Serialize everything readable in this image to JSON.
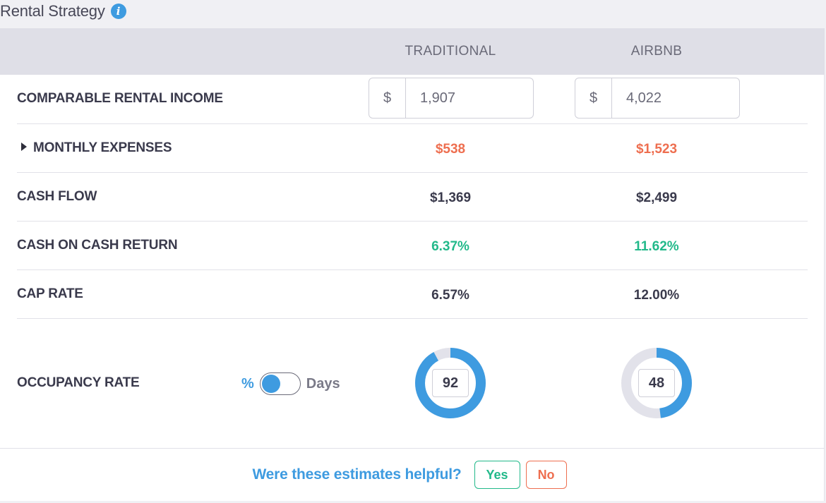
{
  "header": {
    "title": "Rental Strategy",
    "info_icon": "info-icon"
  },
  "columns": {
    "traditional": "TRADITIONAL",
    "airbnb": "AIRBNB"
  },
  "rows": {
    "income": {
      "label": "COMPARABLE RENTAL INCOME",
      "currency": "$",
      "traditional": "1,907",
      "airbnb": "4,022"
    },
    "expenses": {
      "label": "MONTHLY EXPENSES",
      "traditional": "$538",
      "airbnb": "$1,523"
    },
    "cash_flow": {
      "label": "CASH FLOW",
      "traditional": "$1,369",
      "airbnb": "$2,499"
    },
    "coc_return": {
      "label": "CASH ON CASH RETURN",
      "traditional": "6.37%",
      "airbnb": "11.62%"
    },
    "cap_rate": {
      "label": "CAP RATE",
      "traditional": "6.57%",
      "airbnb": "12.00%"
    },
    "occupancy": {
      "label": "OCCUPANCY RATE",
      "toggle_left": "%",
      "toggle_right": "Days",
      "traditional": "92",
      "airbnb": "48",
      "traditional_pct": 92,
      "airbnb_pct": 48
    }
  },
  "feedback": {
    "question": "Were these estimates helpful?",
    "yes": "Yes",
    "no": "No"
  },
  "colors": {
    "accent_blue": "#3e9be0",
    "expense_red": "#ee6e4f",
    "return_green": "#22b98a",
    "donut_track": "#e2e2ea"
  }
}
